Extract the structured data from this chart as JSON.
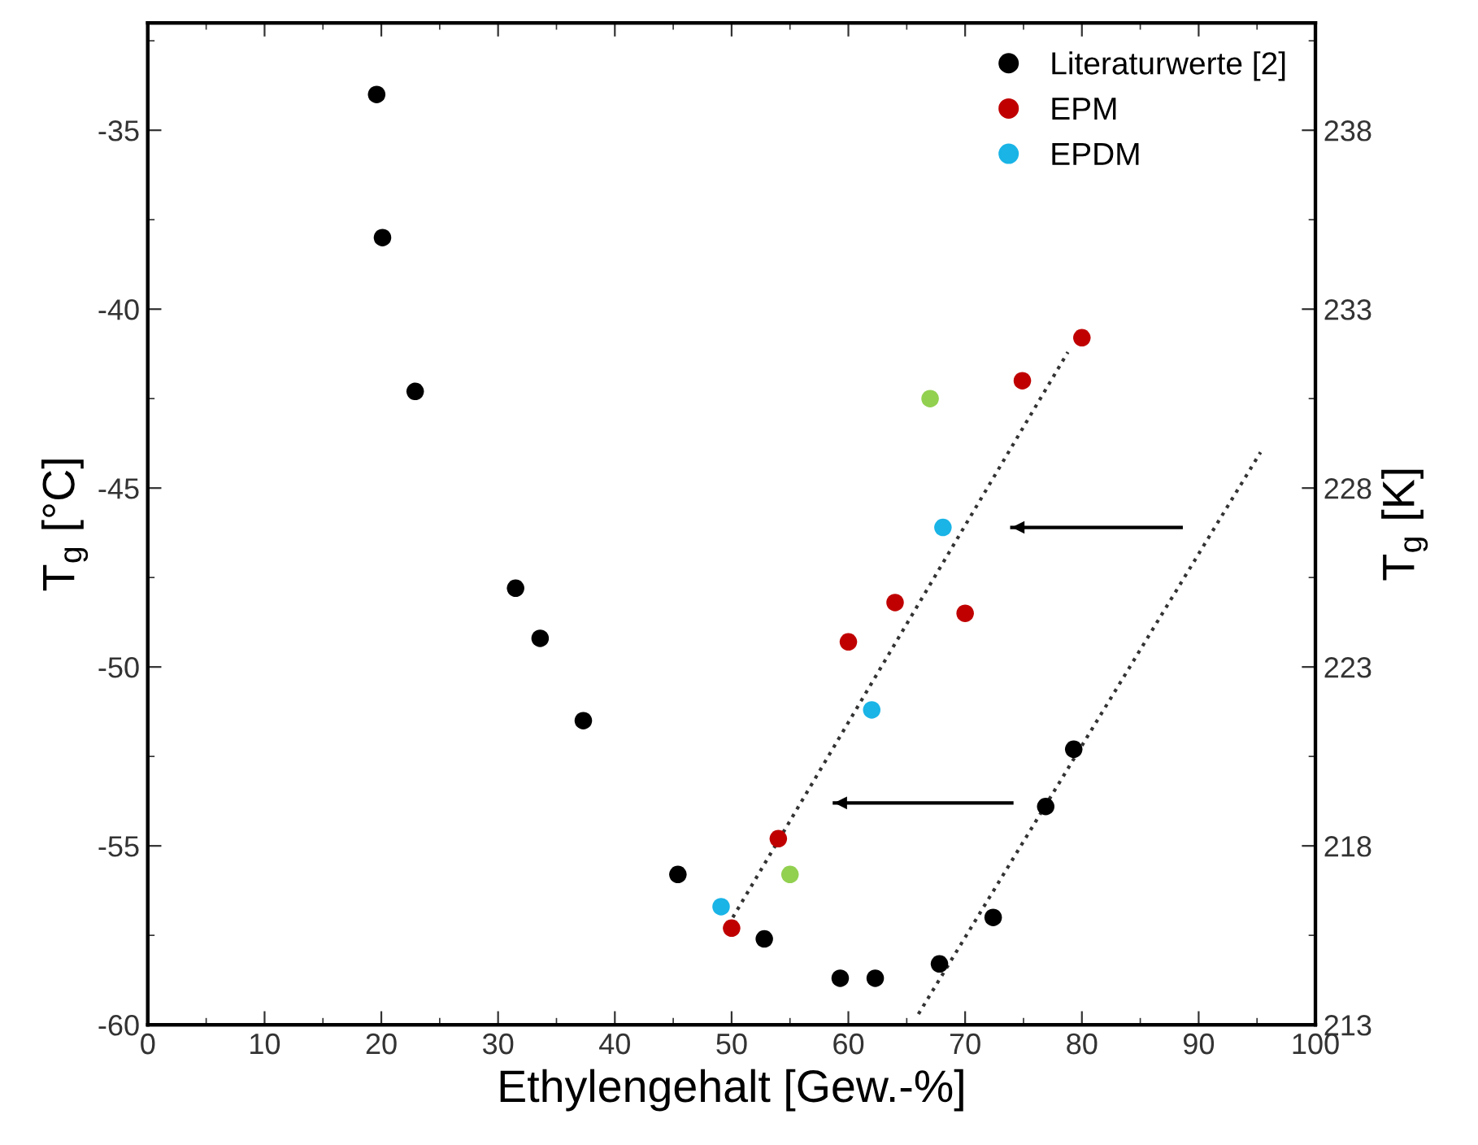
{
  "chart_data": {
    "type": "scatter",
    "xlabel": "Ethylengehalt [Gew.-%]",
    "ylabel": "T$_{g}$ [°C]",
    "y2label": "T$_{g}$ [K]",
    "xlim": [
      0,
      100
    ],
    "xticks": [
      0,
      10,
      20,
      30,
      40,
      50,
      60,
      70,
      80,
      90,
      100
    ],
    "ylim": [
      -60,
      -32
    ],
    "yticks": [
      -60,
      -55,
      -50,
      -45,
      -40,
      -35
    ],
    "y2lim": [
      213,
      241
    ],
    "y2ticks": [
      213,
      218,
      223,
      228,
      233,
      238
    ],
    "grid": false,
    "legend": "top right",
    "marker": "circle",
    "series": [
      {
        "name": "Literaturwerte [2]",
        "color": "#000000",
        "x": [
          19.6,
          20.1,
          22.9,
          31.5,
          33.6,
          37.3,
          45.4,
          52.8,
          59.3,
          62.3,
          67.8,
          72.4,
          76.9,
          79.3
        ],
        "values": [
          -34.0,
          -38.0,
          -42.3,
          -47.8,
          -49.2,
          -51.5,
          -55.8,
          -57.6,
          -58.7,
          -58.7,
          -58.3,
          -57.0,
          -53.9,
          -52.3
        ]
      },
      {
        "name": "EPM",
        "color": "#c00000",
        "x": [
          50.0,
          54.0,
          60.0,
          64.0,
          70.0,
          74.9,
          80.0
        ],
        "values": [
          -57.3,
          -54.8,
          -49.3,
          -48.2,
          -48.5,
          -42.0,
          -40.8
        ]
      },
      {
        "name": "EPDM",
        "color": "#1ab4e6",
        "x": [
          49.1,
          62.0,
          68.1
        ],
        "values": [
          -56.7,
          -51.2,
          -46.1
        ]
      },
      {
        "color": "#92d050",
        "x": [
          55.0,
          67.0
        ],
        "values": [
          -55.8,
          -42.5
        ]
      },
      {
        "type": "line",
        "marker": "none",
        "line_style": "dotted",
        "color": "#333333",
        "x": [
          50.1,
          78.8
        ],
        "values": [
          -57.0,
          -41.2
        ]
      },
      {
        "type": "line",
        "marker": "none",
        "line_style": "dotted",
        "color": "#333333",
        "x": [
          66.0,
          95.3
        ],
        "values": [
          -59.7,
          -44.0
        ]
      },
      {
        "type": "line",
        "marker": "none",
        "line_style": "solid",
        "color": "#000000",
        "x": [
          88.5,
          74.0
        ],
        "values": [
          -46.1,
          -46.1
        ]
      },
      {
        "type": "line",
        "marker": "none",
        "line_style": "solid",
        "color": "#000000",
        "x": [
          74.0,
          58.8
        ],
        "values": [
          -53.8,
          -53.8
        ]
      }
    ]
  }
}
